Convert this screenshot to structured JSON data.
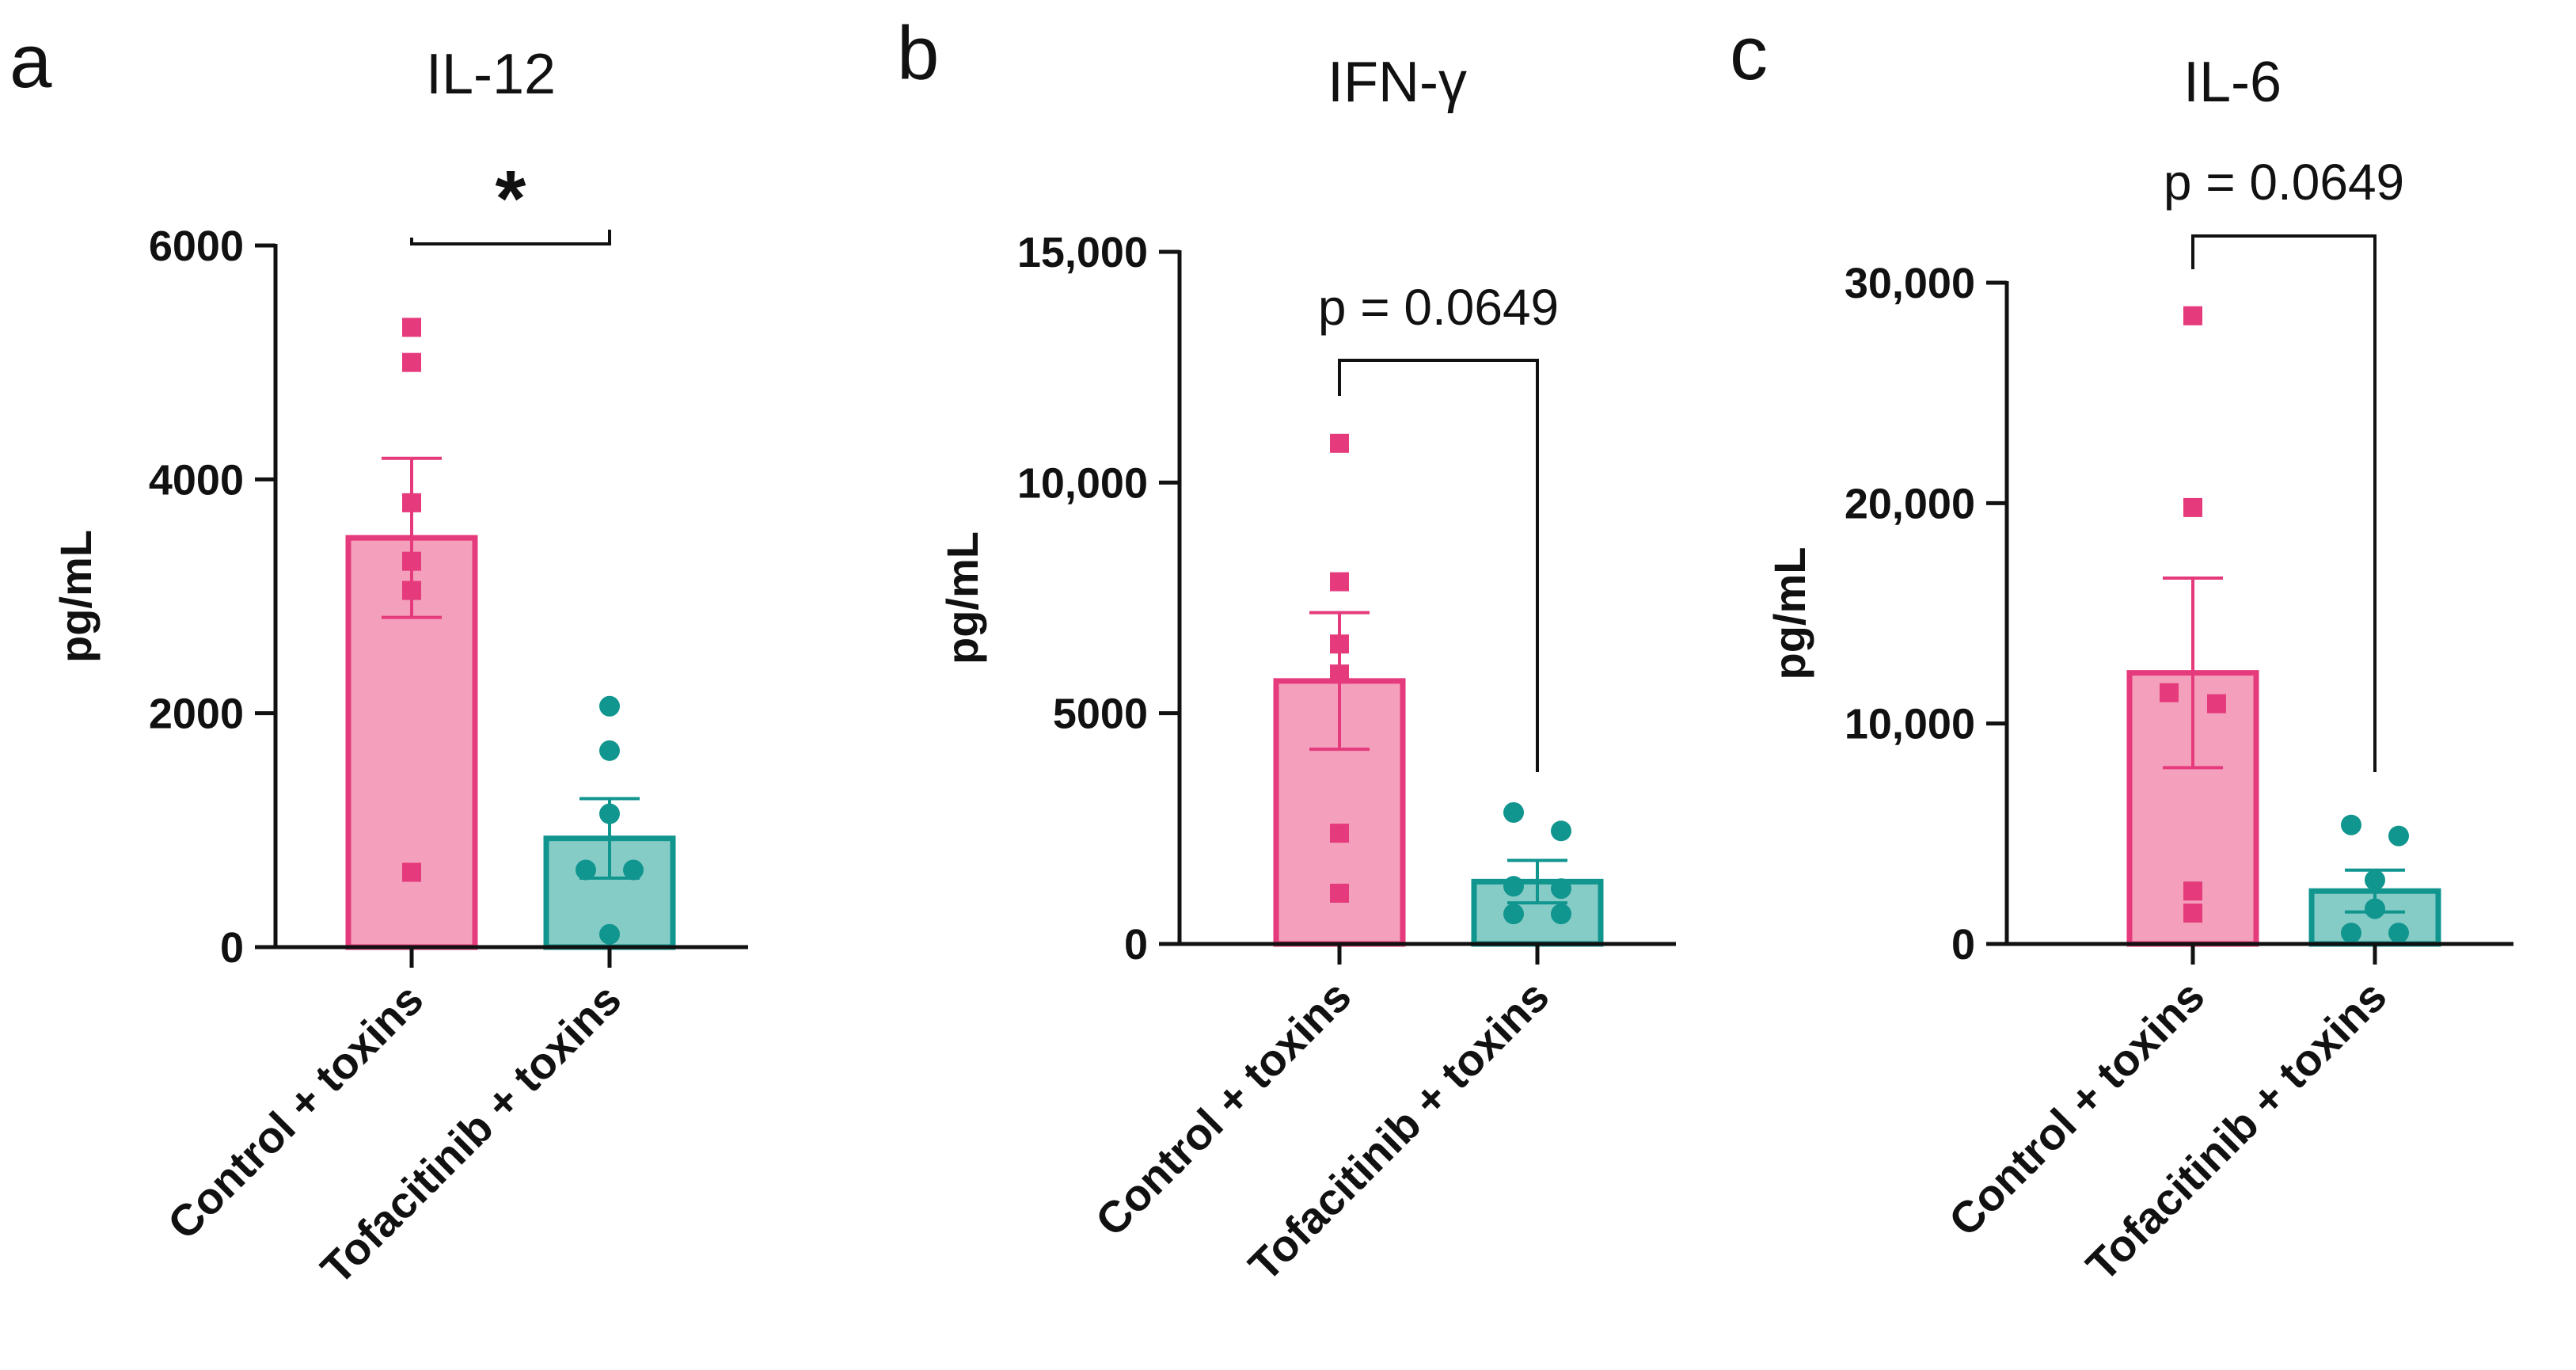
{
  "colors": {
    "control_fill": "#F4A0BC",
    "control_stroke": "#E53A7B",
    "tofa_fill": "#86CCC6",
    "tofa_stroke": "#11958F",
    "axis": "#111111"
  },
  "chart_data": [
    {
      "panel_letter": "a",
      "type": "bar",
      "title": "IL-12",
      "ylabel": "pg/mL",
      "ylim": [
        0,
        6000
      ],
      "yticks": [
        0,
        2000,
        4000,
        6000
      ],
      "yticklabels": [
        "0",
        "2000",
        "4000",
        "6000"
      ],
      "categories": [
        "Control + toxins",
        "Tofacitinib + toxins"
      ],
      "means": [
        3500,
        930
      ],
      "sem": [
        680,
        340
      ],
      "points": [
        [
          5300,
          5000,
          3800,
          3300,
          3050,
          640
        ],
        [
          2060,
          1680,
          1140,
          660,
          660,
          110
        ]
      ],
      "significance": "*"
    },
    {
      "panel_letter": "b",
      "type": "bar",
      "title": "IFN-γ",
      "ylabel": "pg/mL",
      "ylim": [
        0,
        15000
      ],
      "yticks": [
        0,
        5000,
        10000,
        15000
      ],
      "yticklabels": [
        "0",
        "5000",
        "10,000",
        "15,000"
      ],
      "categories": [
        "Control + toxins",
        "Tofacitinib + toxins"
      ],
      "means": [
        5700,
        1350
      ],
      "sem": [
        1480,
        460
      ],
      "points": [
        [
          10850,
          7850,
          6500,
          5850,
          2400,
          1100
        ],
        [
          2850,
          2450,
          1250,
          1200,
          650,
          650
        ]
      ],
      "significance": "p = 0.0649"
    },
    {
      "panel_letter": "c",
      "type": "bar",
      "title": "IL-6",
      "ylabel": "pg/mL",
      "ylim": [
        0,
        30000
      ],
      "yticks": [
        0,
        10000,
        20000,
        30000
      ],
      "yticklabels": [
        "0",
        "10,000",
        "20,000",
        "30,000"
      ],
      "categories": [
        "Control + toxins",
        "Tofacitinib + toxins"
      ],
      "means": [
        12300,
        2400
      ],
      "sem": [
        4300,
        950
      ],
      "points": [
        [
          28500,
          19800,
          11400,
          10900,
          2400,
          1400
        ],
        [
          5400,
          4900,
          2900,
          1600,
          500,
          500
        ]
      ],
      "significance": "p = 0.0649"
    }
  ]
}
